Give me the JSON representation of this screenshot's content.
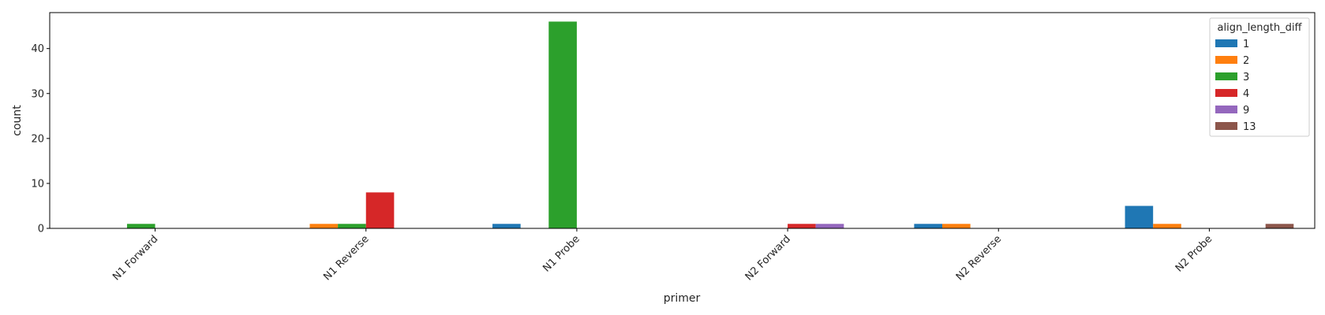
{
  "chart_data": {
    "type": "bar",
    "title": "",
    "xlabel": "primer",
    "ylabel": "count",
    "categories": [
      "N1 Forward",
      "N1 Reverse",
      "N1 Probe",
      "N2 Forward",
      "N2 Reverse",
      "N2 Probe"
    ],
    "ylim": [
      0,
      48
    ],
    "yticks": [
      0,
      10,
      20,
      30,
      40
    ],
    "grid": false,
    "legend": {
      "title": "align_length_diff",
      "placement": "top-right"
    },
    "series": [
      {
        "name": "1",
        "color": "#1f77b4",
        "values": [
          0,
          0,
          1,
          0,
          1,
          5
        ]
      },
      {
        "name": "2",
        "color": "#ff7f0e",
        "values": [
          0,
          1,
          0,
          0,
          1,
          1
        ]
      },
      {
        "name": "3",
        "color": "#2ca02c",
        "values": [
          1,
          1,
          46,
          0,
          0,
          0
        ]
      },
      {
        "name": "4",
        "color": "#d62728",
        "values": [
          0,
          8,
          0,
          1,
          0,
          0
        ]
      },
      {
        "name": "9",
        "color": "#9467bd",
        "values": [
          0,
          0,
          0,
          1,
          0,
          0
        ]
      },
      {
        "name": "13",
        "color": "#8c564b",
        "values": [
          0,
          0,
          0,
          0,
          0,
          1
        ]
      }
    ]
  }
}
